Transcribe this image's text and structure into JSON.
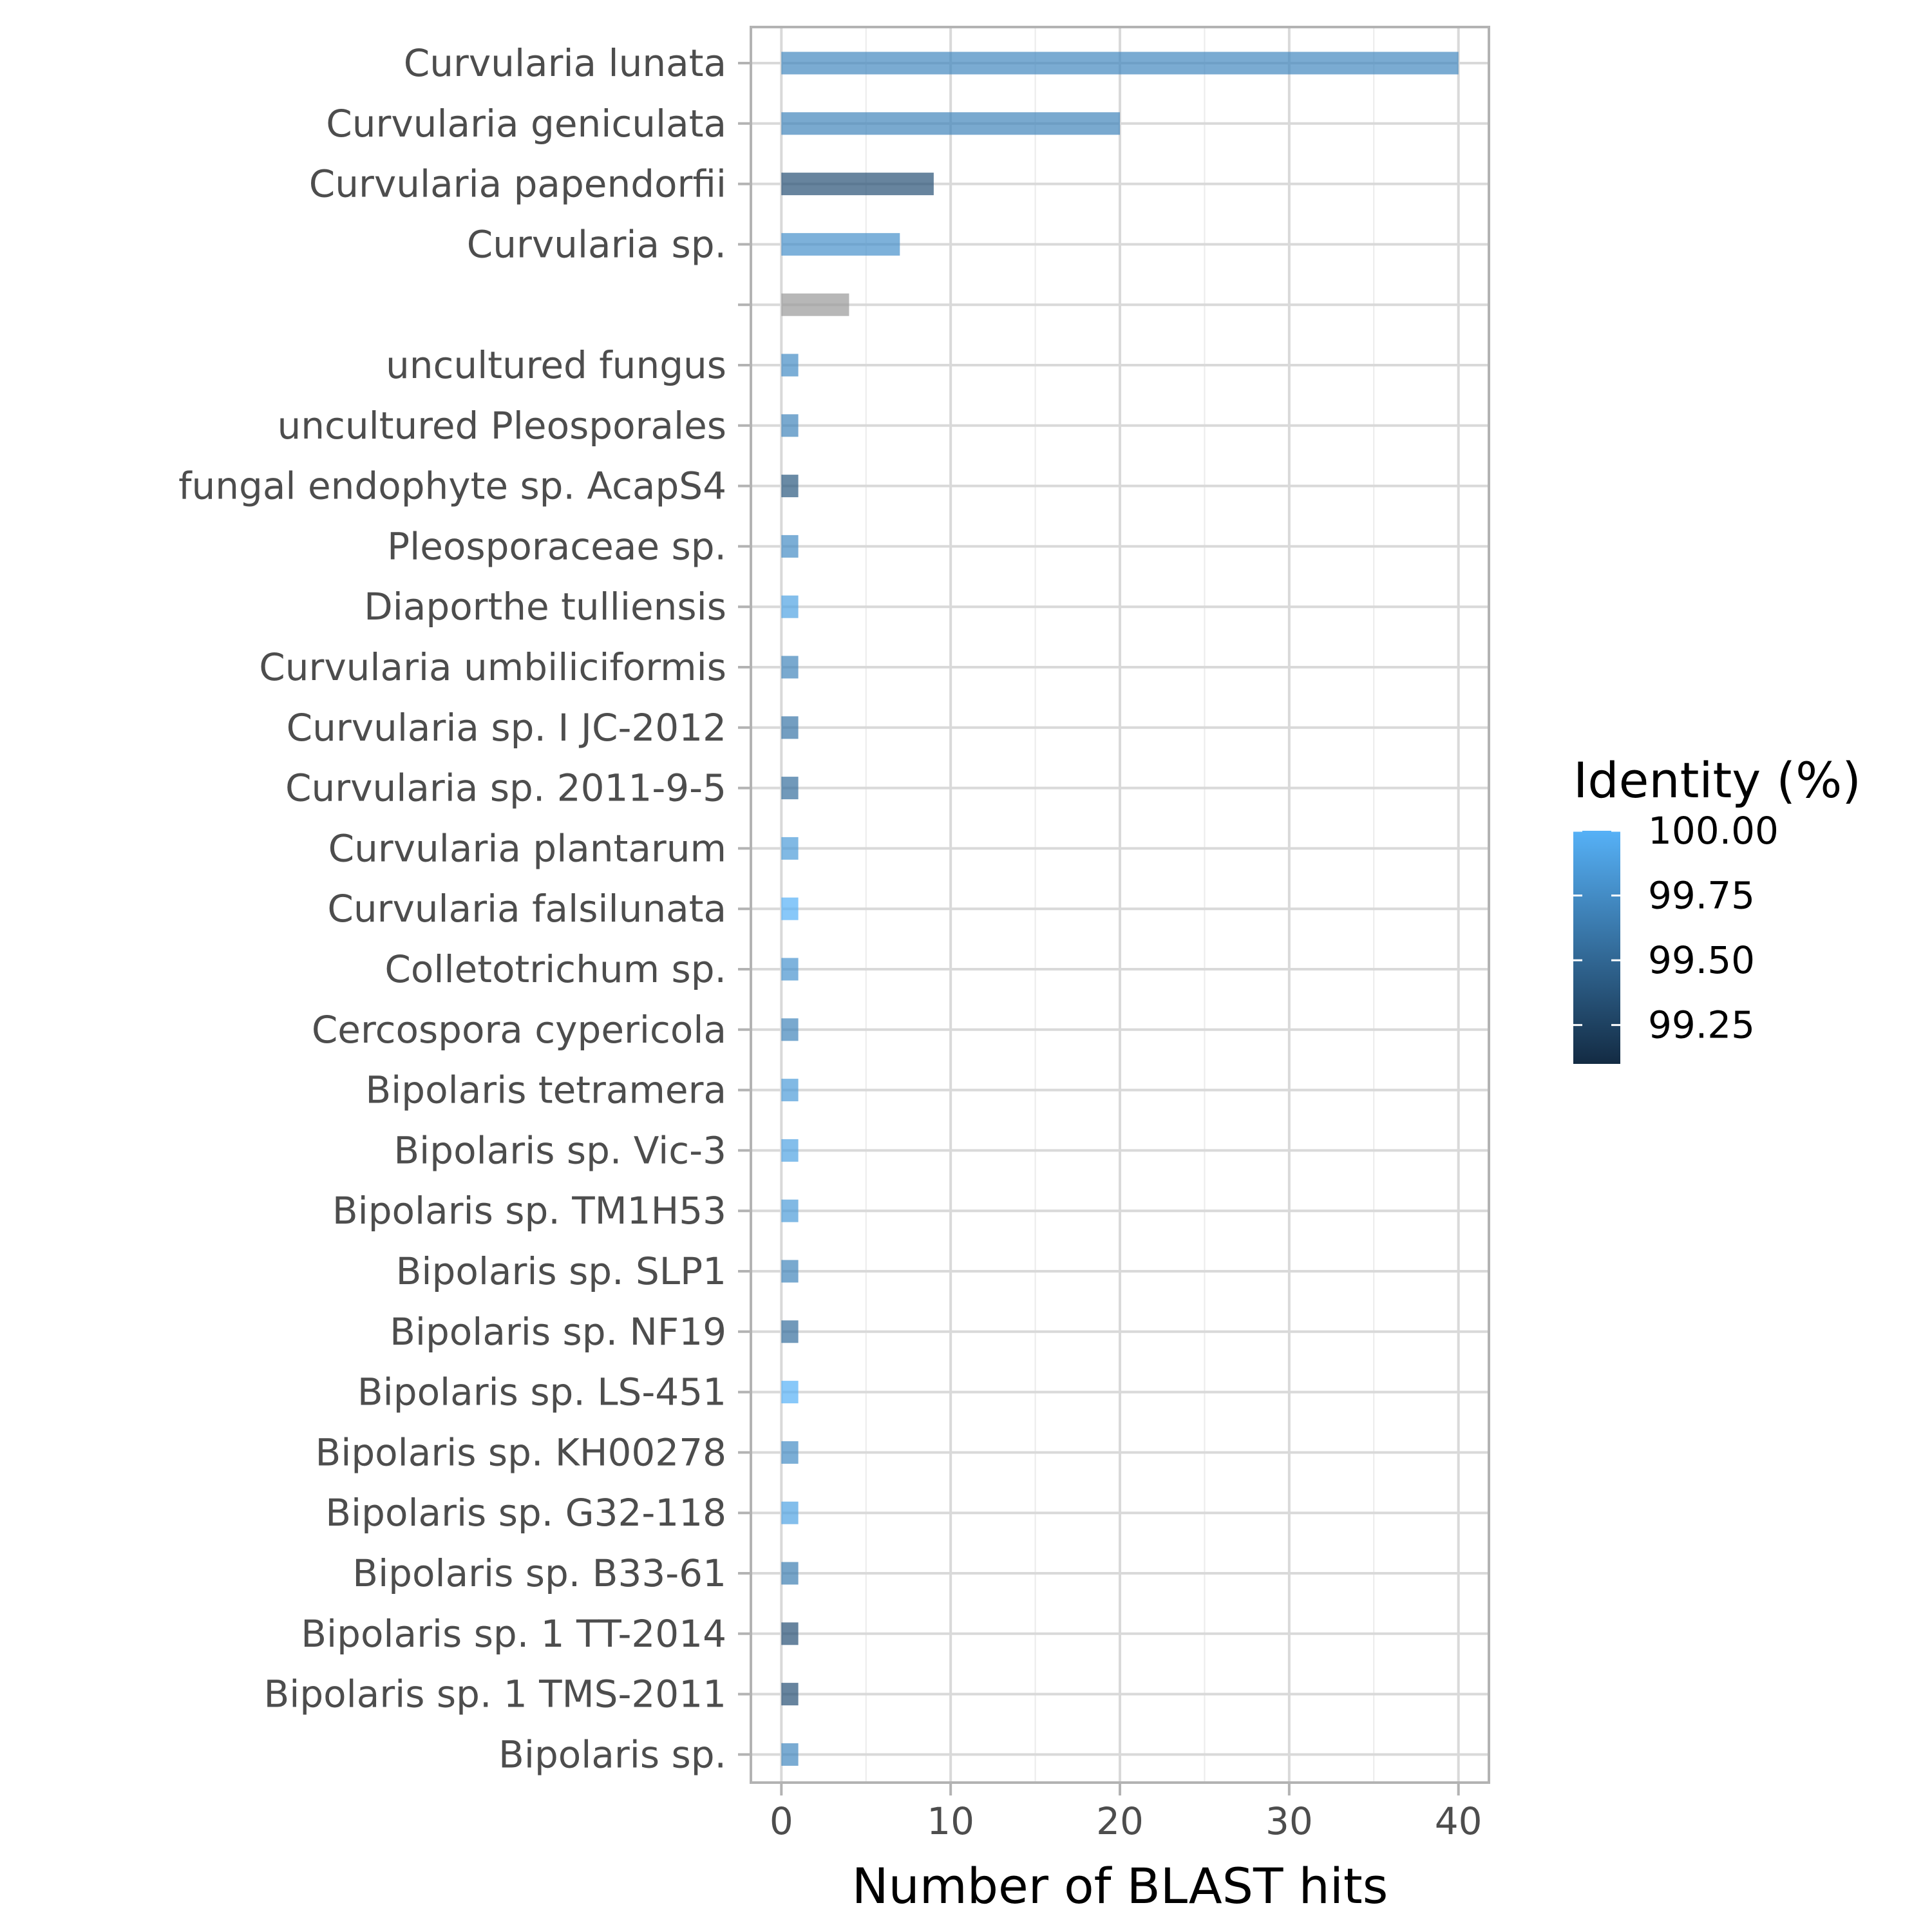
{
  "chart_data": {
    "type": "bar",
    "orientation": "horizontal",
    "xlabel": "Number of BLAST hits",
    "ylabel": "",
    "xlim": [
      -1.8,
      41.8
    ],
    "xticks": [
      0,
      10,
      20,
      30,
      40
    ],
    "grid": true,
    "legend": {
      "title": "Identity (%)",
      "placement": "right",
      "scale_min": 99.1,
      "scale_max": 100.0,
      "ticks": [
        100.0,
        99.75,
        99.5,
        99.25
      ],
      "tick_labels": [
        "100.00",
        "99.75",
        "99.50",
        "99.25"
      ],
      "color_low": "#132B43",
      "color_high": "#56B1F7",
      "na_color": "#999999"
    },
    "categories": [
      "Curvularia lunata",
      "Curvularia geniculata",
      "Curvularia papendorfii",
      "Curvularia sp.",
      "",
      "uncultured fungus",
      "uncultured Pleosporales",
      "fungal endophyte sp. AcapS4",
      "Pleosporaceae sp.",
      "Diaporthe tulliensis",
      "Curvularia umbiliciformis",
      "Curvularia sp. I JC-2012",
      "Curvularia sp. 2011-9-5",
      "Curvularia plantarum",
      "Curvularia falsilunata",
      "Colletotrichum sp.",
      "Cercospora cypericola",
      "Bipolaris tetramera",
      "Bipolaris sp. Vic-3",
      "Bipolaris sp. TM1H53",
      "Bipolaris sp. SLP1",
      "Bipolaris sp. NF19",
      "Bipolaris sp. LS-451",
      "Bipolaris sp. KH00278",
      "Bipolaris sp. G32-118",
      "Bipolaris sp. B33-61",
      "Bipolaris sp. 1 TT-2014",
      "Bipolaris sp. 1 TMS-2011",
      "Bipolaris sp."
    ],
    "values": [
      40,
      20,
      9,
      7,
      4,
      1,
      1,
      1,
      1,
      1,
      1,
      1,
      1,
      1,
      1,
      1,
      1,
      1,
      1,
      1,
      1,
      1,
      1,
      1,
      1,
      1,
      1,
      1,
      1
    ],
    "identity": [
      99.72,
      99.7,
      99.35,
      99.78,
      null,
      99.75,
      99.7,
      99.4,
      99.75,
      99.9,
      99.7,
      99.6,
      99.55,
      99.85,
      100.0,
      99.8,
      99.7,
      99.85,
      99.9,
      99.85,
      99.7,
      99.55,
      100.0,
      99.75,
      99.9,
      99.65,
      99.35,
      99.35,
      99.72
    ]
  }
}
